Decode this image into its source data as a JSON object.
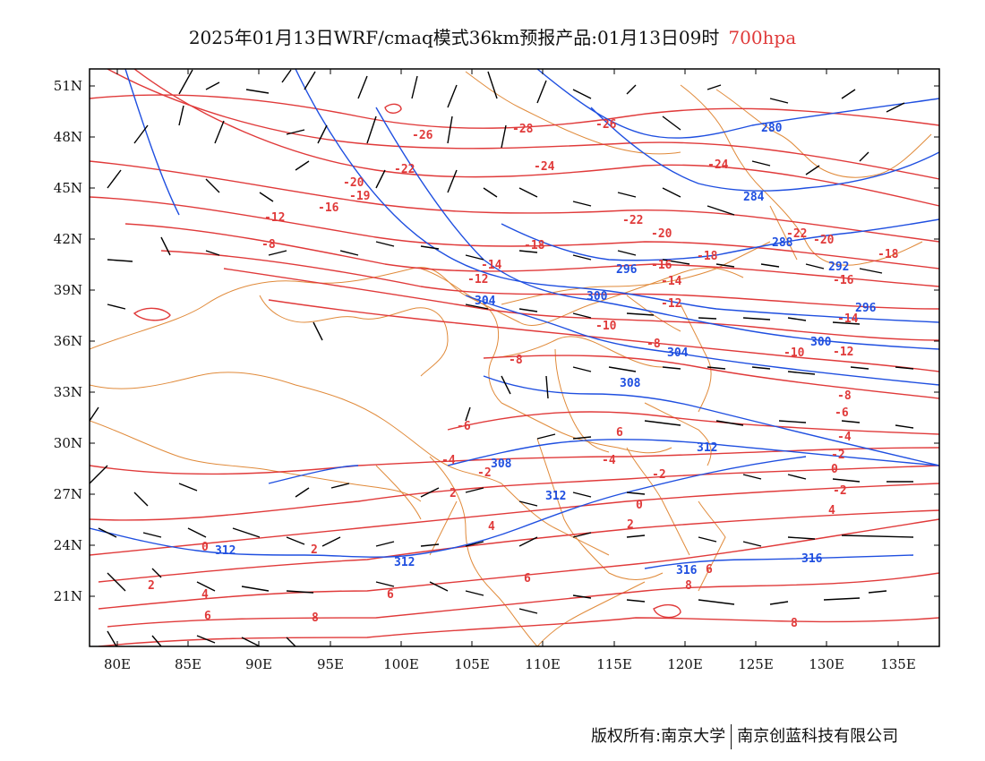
{
  "title": {
    "main": "2025年01月13日WRF/cmaq模式36km预报产品:01月13日09时",
    "level": "700hpa"
  },
  "axes": {
    "lat_labels": [
      "51N",
      "48N",
      "45N",
      "42N",
      "39N",
      "36N",
      "33N",
      "30N",
      "27N",
      "24N",
      "21N"
    ],
    "lon_labels": [
      "80E",
      "85E",
      "90E",
      "95E",
      "100E",
      "105E",
      "110E",
      "115E",
      "120E",
      "125E",
      "130E",
      "135E"
    ]
  },
  "colors": {
    "temperature": "#e03a3a",
    "geopotential": "#1f4fe0",
    "boundary": "#e08a3a",
    "wind": "#000000"
  },
  "temperature_labels": [
    "-28",
    "-26",
    "-26",
    "-24",
    "-24",
    "-22",
    "-22",
    "-22",
    "-20",
    "-20",
    "-20",
    "-19",
    "-18",
    "-18",
    "-18",
    "-16",
    "-16",
    "-16",
    "-14",
    "-14",
    "-14",
    "-12",
    "-12",
    "-12",
    "-12",
    "-10",
    "-10",
    "-8",
    "-8",
    "-8",
    "-8",
    "-6",
    "-6",
    "-4",
    "-4",
    "-4",
    "-2",
    "-2",
    "-2",
    "-2",
    "0",
    "0",
    "0",
    "2",
    "2",
    "2",
    "2",
    "4",
    "4",
    "4",
    "6",
    "6",
    "6",
    "6",
    "6",
    "8",
    "8",
    "8"
  ],
  "height_labels": [
    "280",
    "284",
    "288",
    "292",
    "296",
    "296",
    "300",
    "300",
    "304",
    "304",
    "308",
    "308",
    "312",
    "312",
    "312",
    "312",
    "316",
    "316"
  ],
  "footer": {
    "left": "版权所有:南京大学",
    "right": "南京创蓝科技有限公司"
  }
}
